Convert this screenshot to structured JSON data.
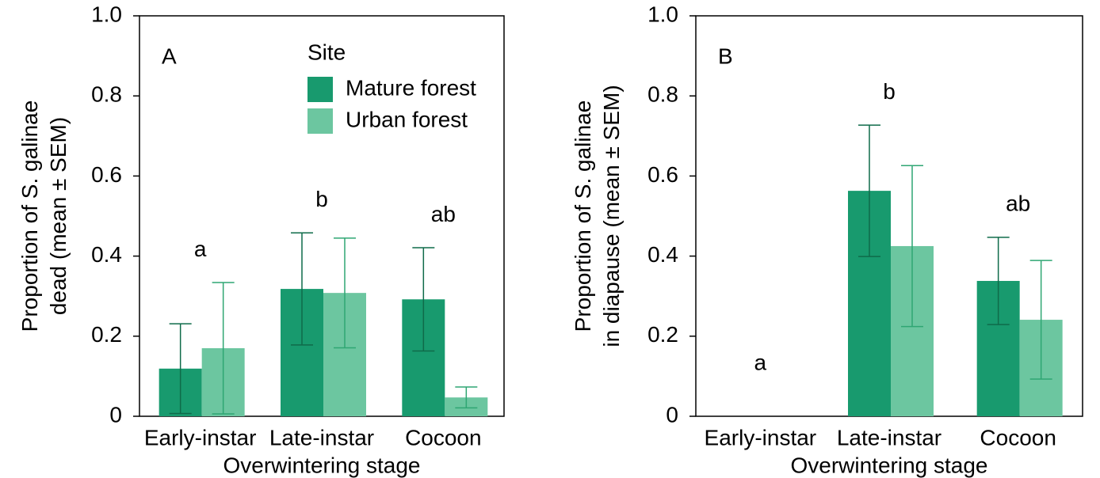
{
  "chart_data": [
    {
      "type": "bar",
      "panel_label": "A",
      "ylabel": [
        "Proportion of S. galinae",
        "dead (mean ± SEM)"
      ],
      "xlabel": "Overwintering stage",
      "categories": [
        "Early-instar",
        "Late-instar",
        "Cocoon"
      ],
      "series": [
        {
          "name": "Mature forest",
          "color": "#189a6e",
          "values": [
            0.119,
            0.318,
            0.292
          ],
          "errors": [
            0.112,
            0.14,
            0.129
          ]
        },
        {
          "name": "Urban forest",
          "color": "#6cc6a0",
          "values": [
            0.17,
            0.308,
            0.047
          ],
          "errors": [
            0.164,
            0.137,
            0.026
          ]
        }
      ],
      "letters": [
        "a",
        "b",
        "ab"
      ],
      "legend_title": "Site",
      "ylim": [
        0,
        1.0
      ],
      "yticks": [
        0,
        0.2,
        0.4,
        0.6,
        0.8,
        {
          "value": 1.0,
          "label": "1.0"
        }
      ]
    },
    {
      "type": "bar",
      "panel_label": "B",
      "ylabel": [
        "Proportion of S. galinae",
        "in diapause (mean ± SEM)"
      ],
      "xlabel": "Overwintering stage",
      "categories": [
        "Early-instar",
        "Late-instar",
        "Cocoon"
      ],
      "series": [
        {
          "name": "Mature forest",
          "color": "#189a6e",
          "values": [
            0,
            0.563,
            0.338
          ],
          "errors": [
            0,
            0.164,
            0.109
          ]
        },
        {
          "name": "Urban forest",
          "color": "#6cc6a0",
          "values": [
            0,
            0.425,
            0.241
          ],
          "errors": [
            0,
            0.201,
            0.148
          ]
        }
      ],
      "letters": [
        "a",
        "b",
        "ab"
      ],
      "ylim": [
        0,
        1.0
      ],
      "yticks": [
        0,
        0.2,
        0.4,
        0.6,
        0.8,
        {
          "value": 1.0,
          "label": "1.0"
        }
      ]
    }
  ]
}
